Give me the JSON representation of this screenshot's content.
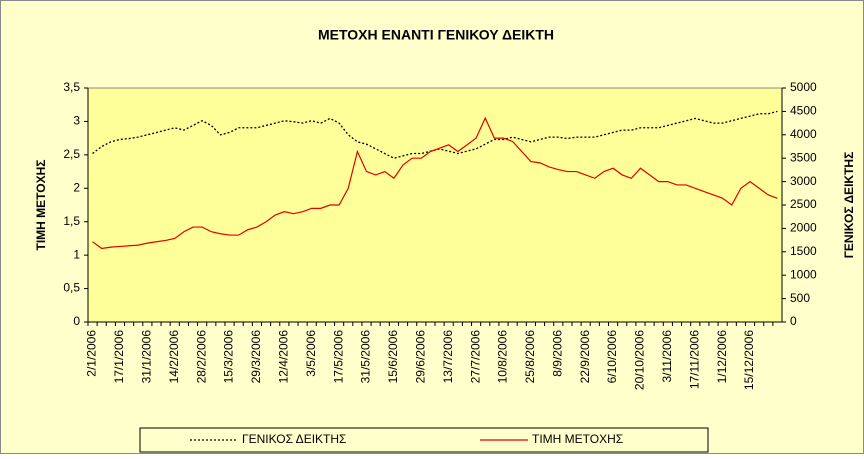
{
  "chart_data": {
    "type": "line",
    "title": "ΜΕΤΟΧΗ ΕΝΑΝΤΙ ΓΕΝΙΚΟΥ ΔΕΙΚΤΗ",
    "y_label": "ΤΙΜΗ ΜΕΤΟΧΗΣ",
    "y2_label": "ΓΕΝΙΚΟΣ ΔΕΙΚΤΗΣ",
    "categories": [
      "2/1/2006",
      null,
      null,
      "17/1/2006",
      null,
      null,
      "31/1/2006",
      null,
      null,
      "14/2/2006",
      null,
      null,
      "28/2/2006",
      null,
      null,
      "15/3/2006",
      null,
      null,
      "29/3/2006",
      null,
      null,
      "12/4/2006",
      null,
      null,
      "3/5/2006",
      null,
      null,
      "17/5/2006",
      null,
      null,
      "31/5/2006",
      null,
      null,
      "15/6/2006",
      null,
      null,
      "29/6/2006",
      null,
      null,
      "13/7/2006",
      null,
      null,
      "27/7/2006",
      null,
      null,
      "10/8/2006",
      null,
      null,
      "25/8/2006",
      null,
      null,
      "8/9/2006",
      null,
      null,
      "22/9/2006",
      null,
      null,
      "6/10/2006",
      null,
      null,
      "20/10/2006",
      null,
      null,
      "3/11/2006",
      null,
      null,
      "17/11/2006",
      null,
      null,
      "1/12/2006",
      null,
      null,
      "15/12/2006",
      null,
      null,
      null
    ],
    "series": [
      {
        "name": "ΓΕΝΙΚΟΣ ΔΕΙΚΤΗΣ",
        "color": "#000000",
        "dash": true,
        "axis": "y2",
        "values": [
          3600,
          3750,
          3850,
          3900,
          3920,
          3950,
          4000,
          4050,
          4100,
          4150,
          4100,
          4200,
          4300,
          4200,
          4000,
          4050,
          4150,
          4150,
          4150,
          4200,
          4250,
          4300,
          4280,
          4250,
          4300,
          4250,
          4350,
          4250,
          4000,
          3850,
          3800,
          3700,
          3600,
          3500,
          3550,
          3600,
          3600,
          3650,
          3700,
          3650,
          3600,
          3650,
          3700,
          3800,
          3900,
          3900,
          3950,
          3900,
          3850,
          3900,
          3950,
          3950,
          3920,
          3950,
          3950,
          3950,
          4000,
          4050,
          4100,
          4100,
          4150,
          4150,
          4150,
          4200,
          4250,
          4300,
          4350,
          4300,
          4250,
          4250,
          4300,
          4350,
          4400,
          4450,
          4450,
          4500
        ]
      },
      {
        "name": "ΤΙΜΗ ΜΕΤΟΧΗΣ",
        "color": "#e00000",
        "dash": false,
        "axis": "y",
        "values": [
          1.2,
          1.1,
          1.12,
          1.13,
          1.14,
          1.15,
          1.18,
          1.2,
          1.22,
          1.25,
          1.35,
          1.42,
          1.42,
          1.35,
          1.32,
          1.3,
          1.3,
          1.38,
          1.42,
          1.5,
          1.6,
          1.65,
          1.62,
          1.65,
          1.7,
          1.7,
          1.75,
          1.75,
          2.0,
          2.55,
          2.25,
          2.2,
          2.25,
          2.15,
          2.35,
          2.45,
          2.45,
          2.55,
          2.6,
          2.65,
          2.55,
          2.65,
          2.75,
          3.05,
          2.75,
          2.75,
          2.7,
          2.55,
          2.4,
          2.38,
          2.32,
          2.28,
          2.25,
          2.25,
          2.2,
          2.15,
          2.25,
          2.3,
          2.2,
          2.15,
          2.3,
          2.2,
          2.1,
          2.1,
          2.05,
          2.05,
          2.0,
          1.95,
          1.9,
          1.85,
          1.75,
          2.0,
          2.1,
          2.0,
          1.9,
          1.85
        ]
      }
    ],
    "ylim": [
      0,
      3.5
    ],
    "yticks": [
      0,
      {
        "value": 0.5,
        "label": "0,5"
      },
      1,
      {
        "value": 1.5,
        "label": "1,5"
      },
      2,
      {
        "value": 2.5,
        "label": "2,5"
      },
      3,
      {
        "value": 3.5,
        "label": "3,5"
      }
    ],
    "y2lim": [
      0,
      5000
    ],
    "y2ticks": [
      0,
      500,
      1000,
      1500,
      2000,
      2500,
      3000,
      3500,
      4000,
      4500,
      5000
    ],
    "legend": "bottom"
  }
}
